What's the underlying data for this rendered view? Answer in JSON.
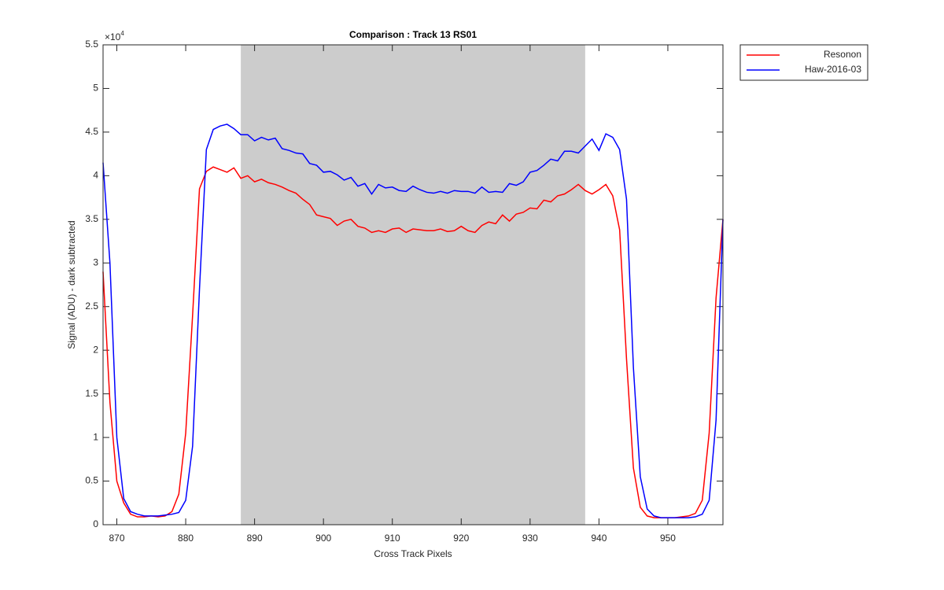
{
  "chart_data": {
    "type": "line",
    "title": "Comparison : Track 13  RS01",
    "x_label": "Cross Track Pixels",
    "y_label": "Signal (ADU) - dark subtracted",
    "y_scale_label": {
      "base": "×10",
      "exponent": "4"
    },
    "x": [
      868,
      869,
      870,
      871,
      872,
      873,
      874,
      875,
      876,
      877,
      878,
      879,
      880,
      881,
      882,
      883,
      884,
      885,
      886,
      887,
      888,
      889,
      890,
      891,
      892,
      893,
      894,
      895,
      896,
      897,
      898,
      899,
      900,
      901,
      902,
      903,
      904,
      905,
      906,
      907,
      908,
      909,
      910,
      911,
      912,
      913,
      914,
      915,
      916,
      917,
      918,
      919,
      920,
      921,
      922,
      923,
      924,
      925,
      926,
      927,
      928,
      929,
      930,
      931,
      932,
      933,
      934,
      935,
      936,
      937,
      938,
      939,
      940,
      941,
      942,
      943,
      944,
      945,
      946,
      947,
      948,
      949,
      950,
      951,
      952,
      953,
      954,
      955,
      956,
      957,
      958
    ],
    "series": [
      {
        "name": "Resonon",
        "color": "#ff0000",
        "values": [
          2.9,
          1.4,
          0.5,
          0.25,
          0.12,
          0.09,
          0.09,
          0.1,
          0.09,
          0.1,
          0.15,
          0.35,
          1.05,
          2.4,
          3.85,
          4.05,
          4.1,
          4.07,
          4.04,
          4.09,
          3.97,
          4.0,
          3.93,
          3.96,
          3.92,
          3.9,
          3.87,
          3.83,
          3.8,
          3.73,
          3.67,
          3.55,
          3.53,
          3.51,
          3.43,
          3.48,
          3.5,
          3.42,
          3.4,
          3.35,
          3.37,
          3.35,
          3.39,
          3.4,
          3.35,
          3.39,
          3.38,
          3.37,
          3.37,
          3.39,
          3.36,
          3.37,
          3.42,
          3.37,
          3.35,
          3.43,
          3.47,
          3.45,
          3.55,
          3.48,
          3.56,
          3.58,
          3.63,
          3.62,
          3.72,
          3.7,
          3.77,
          3.79,
          3.84,
          3.9,
          3.83,
          3.79,
          3.84,
          3.9,
          3.77,
          3.38,
          1.9,
          0.65,
          0.2,
          0.1,
          0.08,
          0.08,
          0.08,
          0.08,
          0.09,
          0.1,
          0.13,
          0.28,
          1.05,
          2.6,
          3.5
        ]
      },
      {
        "name": "Haw-2016-03",
        "color": "#0000ff",
        "values": [
          4.15,
          3.0,
          1.0,
          0.3,
          0.15,
          0.12,
          0.1,
          0.1,
          0.1,
          0.11,
          0.12,
          0.14,
          0.28,
          0.9,
          2.7,
          4.3,
          4.53,
          4.57,
          4.59,
          4.54,
          4.47,
          4.47,
          4.4,
          4.44,
          4.41,
          4.43,
          4.31,
          4.29,
          4.26,
          4.25,
          4.14,
          4.12,
          4.04,
          4.05,
          4.01,
          3.95,
          3.98,
          3.88,
          3.91,
          3.79,
          3.9,
          3.86,
          3.87,
          3.83,
          3.82,
          3.88,
          3.84,
          3.81,
          3.8,
          3.82,
          3.8,
          3.83,
          3.82,
          3.82,
          3.8,
          3.87,
          3.81,
          3.82,
          3.81,
          3.91,
          3.89,
          3.93,
          4.04,
          4.06,
          4.12,
          4.19,
          4.17,
          4.28,
          4.28,
          4.26,
          4.34,
          4.42,
          4.29,
          4.48,
          4.44,
          4.3,
          3.73,
          1.8,
          0.55,
          0.18,
          0.1,
          0.08,
          0.08,
          0.08,
          0.08,
          0.08,
          0.09,
          0.12,
          0.28,
          1.2,
          3.5
        ]
      }
    ],
    "shaded_range": [
      888,
      938
    ],
    "shade_color": "#cccccc",
    "xlim": [
      868,
      958
    ],
    "xticks": [
      870,
      880,
      890,
      900,
      910,
      920,
      930,
      940,
      950
    ],
    "ylim": [
      0,
      5.5
    ],
    "yticks": [
      0,
      0.5,
      1,
      1.5,
      2,
      2.5,
      3,
      3.5,
      4,
      4.5,
      5,
      5.5
    ],
    "grid": false,
    "legend": "northeastoutside"
  }
}
